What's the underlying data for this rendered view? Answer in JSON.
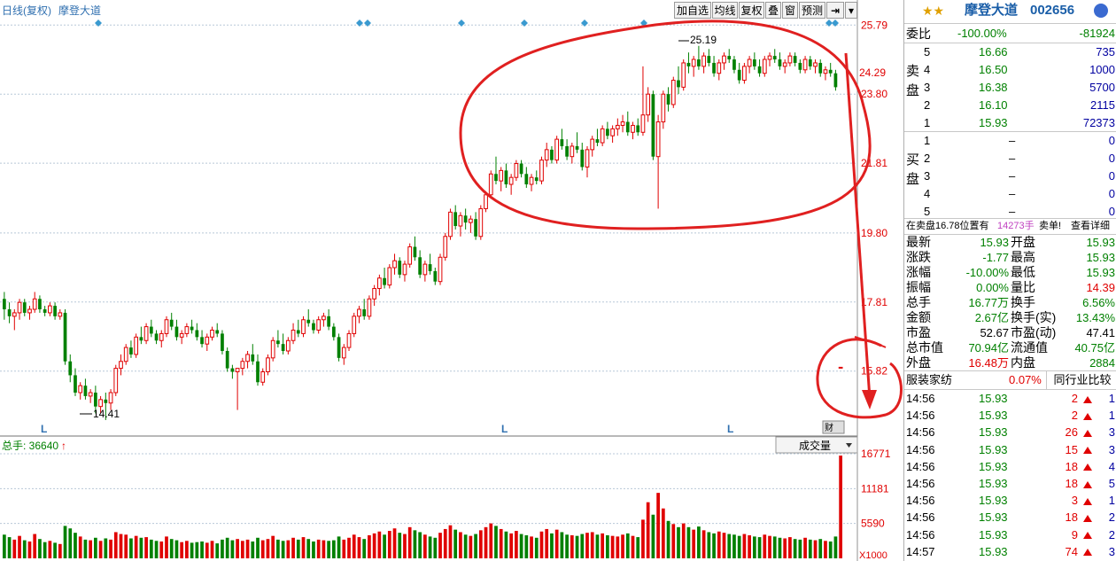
{
  "chart_header": {
    "mode_label": "日线(复权)",
    "stock_name": "摩登大道"
  },
  "toolbar": [
    "加自选",
    "均线",
    "复权",
    "叠",
    "窗",
    "预测"
  ],
  "toolbar_icons": [
    "skip-icon",
    "dropdown-icon"
  ],
  "price_axis": {
    "ticks": [
      "25.79",
      "23.80",
      "21.81",
      "19.80",
      "17.81",
      "15.82"
    ],
    "current_price_label": "24.29"
  },
  "annotations": {
    "high_label": "25.19",
    "low_label": "14.41"
  },
  "l_markers": [
    "L",
    "L",
    "L"
  ],
  "volume_panel": {
    "label": "总手: 36640",
    "selector": "成交量",
    "ticks": [
      "16771",
      "11181",
      "5590"
    ],
    "unit": "X1000"
  },
  "chart_data": {
    "type": "candlestick",
    "ylim": [
      14.0,
      25.95
    ],
    "high": 25.19,
    "low": 14.41,
    "volume_ylim": [
      0,
      16771
    ],
    "candles": [
      [
        17.9,
        18.1,
        17.3,
        17.6,
        3800
      ],
      [
        17.6,
        17.8,
        17.2,
        17.4,
        3400
      ],
      [
        17.4,
        17.6,
        17.0,
        17.5,
        3000
      ],
      [
        17.5,
        17.9,
        17.3,
        17.8,
        3600
      ],
      [
        17.8,
        17.9,
        17.4,
        17.5,
        2900
      ],
      [
        17.5,
        17.7,
        17.3,
        17.6,
        2700
      ],
      [
        17.6,
        18.1,
        17.5,
        17.9,
        3900
      ],
      [
        17.9,
        18.0,
        17.5,
        17.6,
        3100
      ],
      [
        17.6,
        17.7,
        17.4,
        17.5,
        2600
      ],
      [
        17.5,
        17.8,
        17.4,
        17.7,
        2800
      ],
      [
        17.7,
        17.8,
        17.3,
        17.4,
        2500
      ],
      [
        17.4,
        17.6,
        17.3,
        17.5,
        2300
      ],
      [
        17.5,
        17.6,
        16.0,
        16.1,
        5200
      ],
      [
        16.1,
        16.3,
        15.5,
        15.7,
        4800
      ],
      [
        15.7,
        15.9,
        15.1,
        15.2,
        4100
      ],
      [
        15.2,
        15.5,
        15.0,
        15.4,
        3500
      ],
      [
        15.4,
        15.6,
        15.0,
        15.1,
        3000
      ],
      [
        15.1,
        15.3,
        14.9,
        15.2,
        2900
      ],
      [
        15.2,
        15.4,
        14.6,
        14.8,
        3300
      ],
      [
        14.8,
        15.1,
        14.6,
        15.0,
        2800
      ],
      [
        15.0,
        15.2,
        14.41,
        14.9,
        3200
      ],
      [
        14.9,
        15.3,
        14.7,
        15.2,
        3000
      ],
      [
        15.2,
        16.0,
        15.1,
        15.9,
        4200
      ],
      [
        15.9,
        16.3,
        15.7,
        16.1,
        3900
      ],
      [
        16.1,
        16.6,
        16.0,
        16.5,
        3800
      ],
      [
        16.5,
        16.7,
        16.2,
        16.3,
        3200
      ],
      [
        16.3,
        16.9,
        16.2,
        16.8,
        3600
      ],
      [
        16.8,
        17.1,
        16.6,
        16.7,
        3300
      ],
      [
        16.7,
        17.2,
        16.6,
        17.1,
        3400
      ],
      [
        17.1,
        17.3,
        16.8,
        16.9,
        3000
      ],
      [
        16.9,
        17.0,
        16.6,
        16.7,
        2800
      ],
      [
        16.7,
        17.0,
        16.5,
        16.9,
        2700
      ],
      [
        16.9,
        17.4,
        16.8,
        17.3,
        3500
      ],
      [
        17.3,
        17.5,
        17.0,
        17.1,
        3100
      ],
      [
        17.1,
        17.3,
        16.7,
        16.8,
        2900
      ],
      [
        16.8,
        17.0,
        16.6,
        16.9,
        2600
      ],
      [
        16.9,
        17.2,
        16.8,
        17.1,
        2800
      ],
      [
        17.1,
        17.3,
        16.9,
        17.0,
        2500
      ],
      [
        17.0,
        17.2,
        16.7,
        16.8,
        2600
      ],
      [
        16.8,
        17.0,
        16.5,
        16.6,
        2700
      ],
      [
        16.6,
        16.9,
        16.4,
        16.8,
        2500
      ],
      [
        16.8,
        17.1,
        16.7,
        17.0,
        2800
      ],
      [
        17.0,
        17.2,
        16.8,
        16.9,
        2400
      ],
      [
        16.9,
        17.0,
        16.3,
        16.4,
        3000
      ],
      [
        16.4,
        16.5,
        15.8,
        15.9,
        3300
      ],
      [
        15.9,
        16.0,
        15.6,
        15.8,
        2900
      ],
      [
        15.8,
        15.9,
        14.7,
        15.9,
        3100
      ],
      [
        15.9,
        16.2,
        15.7,
        16.1,
        2800
      ],
      [
        16.1,
        16.4,
        15.9,
        16.3,
        3000
      ],
      [
        16.3,
        16.6,
        16.0,
        16.1,
        2700
      ],
      [
        16.1,
        16.3,
        15.4,
        15.5,
        3300
      ],
      [
        15.5,
        15.9,
        15.4,
        15.8,
        2900
      ],
      [
        15.8,
        16.3,
        15.7,
        16.2,
        3100
      ],
      [
        16.2,
        16.8,
        16.1,
        16.7,
        3600
      ],
      [
        16.7,
        17.0,
        16.5,
        16.6,
        3000
      ],
      [
        16.6,
        16.9,
        16.3,
        16.4,
        2800
      ],
      [
        16.4,
        16.8,
        16.3,
        16.7,
        2900
      ],
      [
        16.7,
        17.2,
        16.6,
        17.0,
        3300
      ],
      [
        17.0,
        17.3,
        16.8,
        16.9,
        3000
      ],
      [
        16.9,
        17.4,
        16.8,
        17.3,
        3400
      ],
      [
        17.3,
        17.6,
        17.1,
        17.2,
        3100
      ],
      [
        17.2,
        17.3,
        16.9,
        17.0,
        2700
      ],
      [
        17.0,
        17.4,
        16.9,
        17.3,
        3000
      ],
      [
        17.3,
        17.5,
        17.1,
        17.4,
        2900
      ],
      [
        17.4,
        17.6,
        17.0,
        17.1,
        2800
      ],
      [
        17.1,
        17.2,
        16.7,
        16.8,
        2900
      ],
      [
        16.8,
        16.9,
        16.1,
        16.2,
        3500
      ],
      [
        16.2,
        16.6,
        16.0,
        16.5,
        3000
      ],
      [
        16.5,
        17.0,
        16.4,
        16.9,
        3300
      ],
      [
        16.9,
        17.5,
        16.8,
        17.4,
        3800
      ],
      [
        17.4,
        17.7,
        17.2,
        17.6,
        3400
      ],
      [
        17.6,
        17.9,
        17.3,
        17.4,
        3100
      ],
      [
        17.4,
        18.0,
        17.3,
        17.9,
        3700
      ],
      [
        17.9,
        18.3,
        17.7,
        18.2,
        4000
      ],
      [
        18.2,
        18.6,
        18.0,
        18.5,
        4300
      ],
      [
        18.5,
        18.8,
        18.2,
        18.3,
        3800
      ],
      [
        18.3,
        18.9,
        18.2,
        18.8,
        4400
      ],
      [
        18.8,
        19.2,
        18.6,
        19.0,
        4800
      ],
      [
        19.0,
        19.1,
        18.5,
        18.6,
        4100
      ],
      [
        18.6,
        19.0,
        18.4,
        18.9,
        3900
      ],
      [
        18.9,
        19.5,
        18.8,
        19.4,
        5000
      ],
      [
        19.4,
        19.7,
        19.0,
        19.1,
        4500
      ],
      [
        19.1,
        19.3,
        18.5,
        18.6,
        4200
      ],
      [
        18.6,
        19.0,
        18.4,
        18.9,
        3800
      ],
      [
        18.9,
        19.2,
        18.6,
        18.7,
        3500
      ],
      [
        18.7,
        18.8,
        18.3,
        18.4,
        3300
      ],
      [
        18.4,
        19.2,
        18.3,
        19.1,
        4100
      ],
      [
        19.1,
        19.8,
        19.0,
        19.7,
        4700
      ],
      [
        19.7,
        20.5,
        19.6,
        20.4,
        5300
      ],
      [
        20.4,
        20.6,
        19.9,
        20.0,
        4600
      ],
      [
        20.0,
        20.4,
        19.7,
        20.3,
        4200
      ],
      [
        20.3,
        20.5,
        19.9,
        20.1,
        3800
      ],
      [
        20.1,
        20.3,
        19.8,
        20.2,
        3600
      ],
      [
        20.2,
        20.4,
        19.6,
        19.7,
        3900
      ],
      [
        19.7,
        20.6,
        19.6,
        20.5,
        4500
      ],
      [
        20.5,
        21.0,
        20.4,
        20.9,
        5000
      ],
      [
        20.9,
        21.6,
        20.8,
        21.5,
        5600
      ],
      [
        21.5,
        22.0,
        21.2,
        21.3,
        5200
      ],
      [
        21.3,
        21.7,
        21.0,
        21.6,
        4700
      ],
      [
        21.6,
        21.8,
        21.1,
        21.2,
        4300
      ],
      [
        21.2,
        21.5,
        20.9,
        21.4,
        4000
      ],
      [
        21.4,
        21.9,
        21.3,
        21.8,
        4400
      ],
      [
        21.8,
        21.9,
        21.4,
        21.5,
        3900
      ],
      [
        21.5,
        21.7,
        21.1,
        21.2,
        3700
      ],
      [
        21.2,
        21.5,
        21.0,
        21.4,
        3500
      ],
      [
        21.4,
        21.6,
        21.2,
        21.3,
        3300
      ],
      [
        21.3,
        22.0,
        21.2,
        21.9,
        4300
      ],
      [
        21.9,
        22.4,
        21.7,
        22.2,
        4700
      ],
      [
        22.2,
        22.3,
        21.8,
        21.9,
        4000
      ],
      [
        21.9,
        22.6,
        21.8,
        22.5,
        4600
      ],
      [
        22.5,
        22.8,
        22.2,
        22.3,
        4200
      ],
      [
        22.3,
        22.5,
        21.9,
        22.0,
        3800
      ],
      [
        22.0,
        22.4,
        21.8,
        22.3,
        3700
      ],
      [
        22.3,
        22.7,
        22.1,
        22.2,
        3600
      ],
      [
        22.2,
        22.4,
        21.6,
        21.7,
        3900
      ],
      [
        21.7,
        22.3,
        21.4,
        22.2,
        4100
      ],
      [
        22.2,
        22.6,
        22.0,
        22.5,
        4200
      ],
      [
        22.5,
        22.8,
        22.3,
        22.4,
        3800
      ],
      [
        22.4,
        22.9,
        22.3,
        22.8,
        4000
      ],
      [
        22.8,
        23.0,
        22.5,
        22.6,
        3700
      ],
      [
        22.6,
        22.9,
        22.4,
        22.8,
        3600
      ],
      [
        22.8,
        23.1,
        22.6,
        22.9,
        3500
      ],
      [
        22.9,
        23.2,
        22.7,
        23.0,
        3800
      ],
      [
        23.0,
        23.3,
        22.6,
        22.7,
        4000
      ],
      [
        22.7,
        23.0,
        22.5,
        22.9,
        3600
      ],
      [
        22.9,
        23.1,
        22.6,
        22.7,
        3400
      ],
      [
        22.7,
        24.6,
        22.6,
        23.2,
        6200
      ],
      [
        23.2,
        24.0,
        23.0,
        23.8,
        9000
      ],
      [
        23.8,
        23.9,
        21.9,
        22.0,
        7000
      ],
      [
        22.0,
        23.2,
        20.5,
        23.0,
        10500
      ],
      [
        23.0,
        23.9,
        22.8,
        23.8,
        8000
      ],
      [
        23.8,
        24.0,
        23.3,
        23.5,
        6000
      ],
      [
        23.5,
        24.3,
        23.4,
        24.2,
        5500
      ],
      [
        24.2,
        24.6,
        23.8,
        24.0,
        5000
      ],
      [
        24.0,
        24.8,
        23.9,
        24.7,
        5600
      ],
      [
        24.7,
        25.0,
        24.4,
        24.6,
        5000
      ],
      [
        24.6,
        24.9,
        24.3,
        24.8,
        4600
      ],
      [
        24.8,
        25.19,
        24.5,
        24.6,
        5100
      ],
      [
        24.6,
        25.0,
        24.4,
        24.9,
        4500
      ],
      [
        24.9,
        25.1,
        24.6,
        24.7,
        4200
      ],
      [
        24.7,
        24.9,
        24.3,
        24.4,
        4000
      ],
      [
        24.4,
        24.8,
        24.2,
        24.7,
        4300
      ],
      [
        24.7,
        25.0,
        24.5,
        24.9,
        4100
      ],
      [
        24.9,
        25.1,
        24.7,
        24.8,
        3900
      ],
      [
        24.8,
        24.9,
        24.4,
        24.5,
        3800
      ],
      [
        24.5,
        24.7,
        24.1,
        24.2,
        3600
      ],
      [
        24.2,
        24.7,
        24.1,
        24.6,
        3900
      ],
      [
        24.6,
        24.9,
        24.4,
        24.8,
        3700
      ],
      [
        24.8,
        25.0,
        24.5,
        24.6,
        3500
      ],
      [
        24.6,
        24.8,
        24.3,
        24.4,
        3400
      ],
      [
        24.4,
        24.9,
        24.3,
        24.8,
        3800
      ],
      [
        24.8,
        25.0,
        24.6,
        24.9,
        3600
      ],
      [
        24.9,
        25.1,
        24.7,
        24.8,
        3500
      ],
      [
        24.8,
        25.0,
        24.5,
        24.6,
        3300
      ],
      [
        24.6,
        24.8,
        24.4,
        24.7,
        3200
      ],
      [
        24.7,
        25.0,
        24.6,
        24.9,
        3400
      ],
      [
        24.9,
        25.0,
        24.6,
        24.7,
        3100
      ],
      [
        24.7,
        24.8,
        24.4,
        24.5,
        3000
      ],
      [
        24.5,
        24.9,
        24.4,
        24.8,
        3300
      ],
      [
        24.8,
        24.9,
        24.5,
        24.6,
        3000
      ],
      [
        24.6,
        24.8,
        24.4,
        24.7,
        2900
      ],
      [
        24.7,
        24.8,
        24.3,
        24.4,
        3100
      ],
      [
        24.4,
        24.6,
        24.2,
        24.5,
        2800
      ],
      [
        24.5,
        24.7,
        24.3,
        24.4,
        2700
      ],
      [
        24.4,
        24.5,
        23.9,
        24.0,
        3500
      ],
      [
        15.93,
        15.93,
        15.93,
        15.93,
        16480
      ]
    ]
  },
  "order_book": {
    "weibi_label": "委比",
    "weibi_pct": "-100.00%",
    "weibi_diff": "-81924",
    "sell_group_label": "卖盘",
    "sell": [
      {
        "level": "5",
        "price": "16.66",
        "vol": "735"
      },
      {
        "level": "4",
        "price": "16.50",
        "vol": "1000"
      },
      {
        "level": "3",
        "price": "16.38",
        "vol": "5700"
      },
      {
        "level": "2",
        "price": "16.10",
        "vol": "2115"
      },
      {
        "level": "1",
        "price": "15.93",
        "vol": "72373"
      }
    ],
    "buy_group_label": "买盘",
    "buy": [
      {
        "level": "1",
        "price": "–",
        "vol": "0"
      },
      {
        "level": "2",
        "price": "–",
        "vol": "0"
      },
      {
        "level": "3",
        "price": "–",
        "vol": "0"
      },
      {
        "level": "4",
        "price": "–",
        "vol": "0"
      },
      {
        "level": "5",
        "price": "–",
        "vol": "0"
      }
    ]
  },
  "info_bar": {
    "text": "在卖盘16.78位置有",
    "qty": "14273手",
    "action": "卖单!",
    "link": "查看详细"
  },
  "quote_header": {
    "name": "摩登大道",
    "code": "002656"
  },
  "stats": [
    {
      "l": "最新",
      "lv": "15.93",
      "lc": "green",
      "r": "开盘",
      "rv": "15.93",
      "rc": "green"
    },
    {
      "l": "涨跌",
      "lv": "-1.77",
      "lc": "green",
      "r": "最高",
      "rv": "15.93",
      "rc": "green"
    },
    {
      "l": "涨幅",
      "lv": "-10.00%",
      "lc": "green",
      "r": "最低",
      "rv": "15.93",
      "rc": "green"
    },
    {
      "l": "振幅",
      "lv": "0.00%",
      "lc": "green",
      "r": "量比",
      "rv": "14.39",
      "rc": "red"
    },
    {
      "l": "总手",
      "lv": "16.77万",
      "lc": "green",
      "r": "换手",
      "rv": "6.56%",
      "rc": "green"
    },
    {
      "l": "金额",
      "lv": "2.67亿",
      "lc": "green",
      "r": "换手(实)",
      "rv": "13.43%",
      "rc": "green"
    },
    {
      "l": "市盈",
      "lv": "52.67",
      "lc": "black",
      "r": "市盈(动)",
      "rv": "47.41",
      "rc": "black"
    },
    {
      "l": "总市值",
      "lv": "70.94亿",
      "lc": "green",
      "r": "流通值",
      "rv": "40.75亿",
      "rc": "green"
    },
    {
      "l": "外盘",
      "lv": "16.48万",
      "lc": "red",
      "r": "内盘",
      "rv": "2884",
      "rc": "green"
    }
  ],
  "industry": {
    "name": "服装家纺",
    "pct": "0.07%",
    "compare": "同行业比较"
  },
  "ticks": [
    {
      "time": "14:56",
      "price": "15.93",
      "vol": "2",
      "n": "1"
    },
    {
      "time": "14:56",
      "price": "15.93",
      "vol": "2",
      "n": "1"
    },
    {
      "time": "14:56",
      "price": "15.93",
      "vol": "26",
      "n": "3"
    },
    {
      "time": "14:56",
      "price": "15.93",
      "vol": "15",
      "n": "3"
    },
    {
      "time": "14:56",
      "price": "15.93",
      "vol": "18",
      "n": "4"
    },
    {
      "time": "14:56",
      "price": "15.93",
      "vol": "18",
      "n": "5"
    },
    {
      "time": "14:56",
      "price": "15.93",
      "vol": "3",
      "n": "1"
    },
    {
      "time": "14:56",
      "price": "15.93",
      "vol": "18",
      "n": "2"
    },
    {
      "time": "14:56",
      "price": "15.93",
      "vol": "9",
      "n": "2"
    },
    {
      "time": "14:57",
      "price": "15.93",
      "vol": "74",
      "n": "3"
    }
  ],
  "colors": {
    "up": "#e00000",
    "down": "#008000",
    "grid": "#b8c8d8",
    "accent": "#3070b0",
    "annotation": "#e02020"
  }
}
